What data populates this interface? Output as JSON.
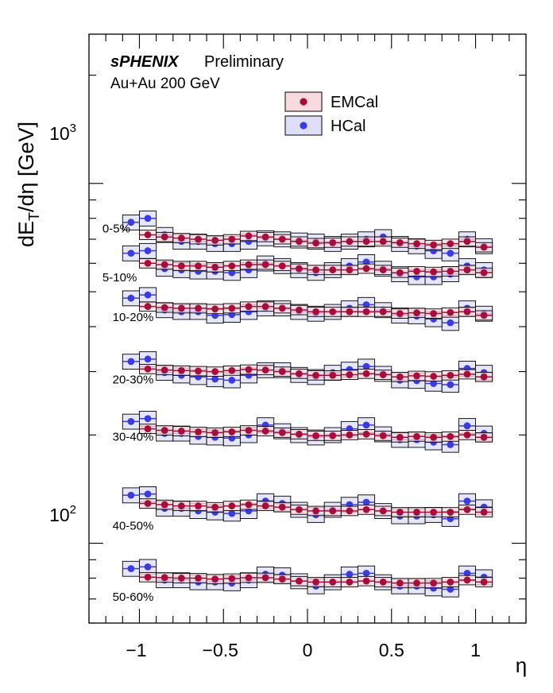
{
  "header": {
    "brand": "sPHENIX",
    "status": "Preliminary",
    "collision": "Au+Au 200 GeV"
  },
  "legend": {
    "items": [
      {
        "label": "EMCal",
        "color": "#a50d3a",
        "box_color": "#f9dadf"
      },
      {
        "label": "HCal",
        "color": "#3c3cdc",
        "box_color": "#dedef8"
      }
    ]
  },
  "chart_data": {
    "type": "scatter",
    "title": "",
    "xlabel": "η",
    "ylabel": "dE_T/dη [GeV]",
    "ylabel_parts": {
      "main": "dE",
      "sub": "T",
      "rest": "/dη [GeV]"
    },
    "yscale": "log",
    "xlim": [
      -1.3,
      1.3
    ],
    "ylim": [
      60,
      2600
    ],
    "x_tick_labels": [
      "−1",
      "−0.5",
      "0",
      "0.5",
      "1"
    ],
    "x_tick_values": [
      -1,
      -0.5,
      0,
      0.5,
      1
    ],
    "y_tick_labels": [
      {
        "base": "10",
        "exp": "2",
        "value": 100
      },
      {
        "base": "10",
        "exp": "3",
        "value": 1000
      }
    ],
    "hcal_eta": [
      -1.05,
      -0.95,
      -0.85,
      -0.75,
      -0.65,
      -0.55,
      -0.45,
      -0.35,
      -0.25,
      -0.15,
      -0.05,
      0.05,
      0.15,
      0.25,
      0.35,
      0.45,
      0.55,
      0.65,
      0.75,
      0.85,
      0.95,
      1.05
    ],
    "emcal_eta": [
      -0.95,
      -0.85,
      -0.75,
      -0.65,
      -0.55,
      -0.45,
      -0.35,
      -0.25,
      -0.15,
      -0.05,
      0.05,
      0.15,
      0.25,
      0.35,
      0.45,
      0.55,
      0.65,
      0.75,
      0.85,
      0.95,
      1.05
    ],
    "centrality_classes": [
      {
        "label": "0-5%",
        "label_eta": -1.22,
        "label_value": 750,
        "emcal": [
          720,
          710,
          705,
          700,
          695,
          700,
          715,
          710,
          700,
          690,
          683,
          685,
          690,
          690,
          690,
          685,
          680,
          675,
          680,
          690,
          665
        ],
        "hcal": [
          780,
          800,
          720,
          690,
          690,
          680,
          680,
          690,
          705,
          700,
          695,
          690,
          680,
          690,
          700,
          710,
          680,
          670,
          650,
          640,
          700,
          670
        ]
      },
      {
        "label": "5-10%",
        "label_eta": -1.22,
        "label_value": 548,
        "emcal": [
          600,
          595,
          590,
          590,
          585,
          590,
          595,
          595,
          590,
          580,
          575,
          575,
          575,
          580,
          575,
          565,
          570,
          568,
          570,
          575,
          565
        ],
        "hcal": [
          640,
          650,
          580,
          575,
          570,
          570,
          565,
          575,
          600,
          590,
          575,
          565,
          575,
          590,
          605,
          580,
          560,
          550,
          550,
          560,
          590,
          575
        ]
      },
      {
        "label": "10-20%",
        "label_eta": -1.16,
        "label_value": 425,
        "emcal": [
          455,
          452,
          450,
          450,
          448,
          450,
          455,
          455,
          450,
          445,
          440,
          440,
          440,
          440,
          440,
          435,
          437,
          435,
          438,
          440,
          430
        ],
        "hcal": [
          480,
          490,
          445,
          440,
          440,
          430,
          432,
          440,
          450,
          450,
          440,
          435,
          440,
          450,
          460,
          445,
          430,
          428,
          420,
          410,
          450,
          435
        ]
      },
      {
        "label": "20-30%",
        "label_eta": -1.16,
        "label_value": 285,
        "emcal": [
          305,
          303,
          302,
          301,
          300,
          302,
          304,
          303,
          300,
          296,
          293,
          293,
          294,
          296,
          294,
          290,
          292,
          291,
          293,
          295,
          290
        ],
        "hcal": [
          320,
          325,
          298,
          293,
          290,
          286,
          284,
          293,
          303,
          303,
          294,
          290,
          298,
          304,
          310,
          296,
          284,
          283,
          278,
          276,
          306,
          298
        ]
      },
      {
        "label": "30-40%",
        "label_eta": -1.16,
        "label_value": 198,
        "emcal": [
          208,
          206,
          205,
          204,
          203,
          204,
          206,
          205,
          203,
          201,
          199,
          199,
          200,
          201,
          199,
          197,
          198,
          197,
          198,
          200,
          197
        ],
        "hcal": [
          218,
          222,
          202,
          202,
          198,
          197,
          196,
          200,
          213,
          205,
          200,
          197,
          200,
          208,
          213,
          201,
          194,
          194,
          191,
          188,
          212,
          202
        ]
      },
      {
        "label": "40-50%",
        "label_eta": -1.16,
        "label_value": 112,
        "emcal": [
          129,
          128,
          127,
          127,
          126,
          127,
          128,
          127,
          126,
          124,
          123,
          123,
          123,
          124,
          123,
          122,
          122,
          122,
          122,
          124,
          122
        ],
        "hcal": [
          136,
          137,
          125,
          125,
          123,
          122,
          121,
          123,
          131,
          129,
          124,
          120,
          124,
          128,
          130,
          123,
          119,
          119,
          120,
          117,
          131,
          126
        ]
      },
      {
        "label": "50-60%",
        "label_eta": -1.16,
        "label_value": 71,
        "emcal": [
          80.5,
          80.3,
          80.0,
          80.0,
          79.5,
          79.8,
          80.2,
          80.2,
          79.5,
          78.5,
          78.0,
          78.0,
          78.0,
          78.5,
          78.0,
          77.5,
          77.5,
          77.5,
          78.0,
          79.0,
          78.0
        ],
        "hcal": [
          85.0,
          86.0,
          79.0,
          79.0,
          78.0,
          78.0,
          77.5,
          79.0,
          82.0,
          81.5,
          78.5,
          76.0,
          78.0,
          82.0,
          82.5,
          78.0,
          76.0,
          76.0,
          75.0,
          74.5,
          82.5,
          80.5
        ]
      }
    ]
  }
}
